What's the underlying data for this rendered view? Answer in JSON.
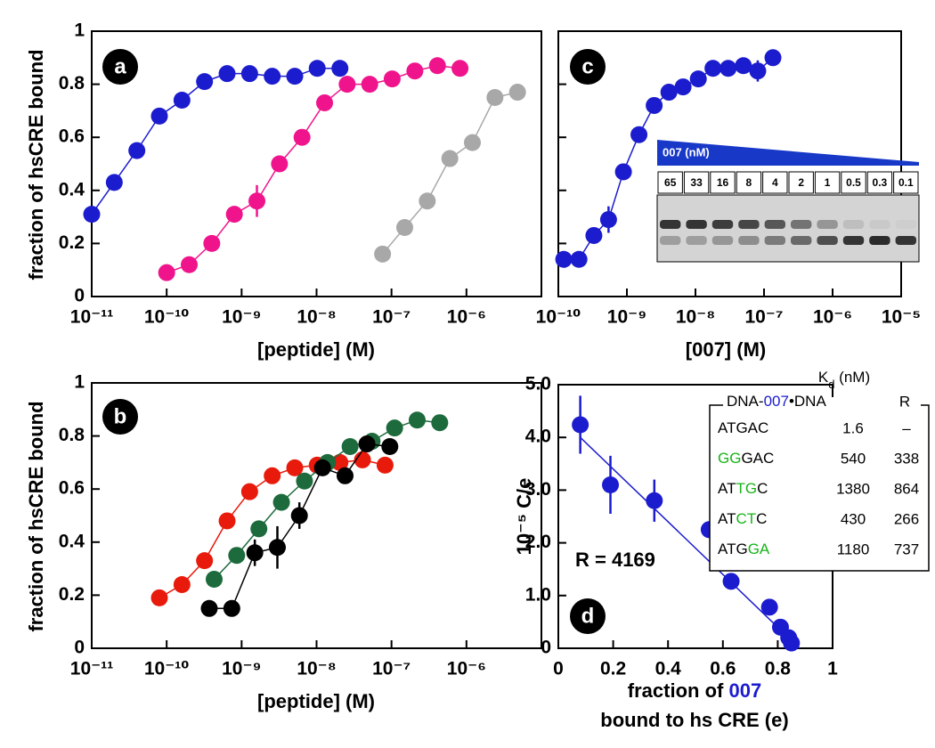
{
  "chart_data": [
    {
      "type": "line",
      "panel": "a",
      "ylabel": "fraction of hsCRE bound",
      "xlabel": "[peptide] (M)",
      "log_x": true,
      "xlim": [
        1e-11,
        1e-05
      ],
      "ylim": [
        0,
        1
      ],
      "xticks": [
        {
          "value": 1e-11,
          "label": "10⁻¹¹"
        },
        {
          "value": 1e-10,
          "label": "10⁻¹⁰"
        },
        {
          "value": 1e-09,
          "label": "10⁻⁹"
        },
        {
          "value": 1e-08,
          "label": "10⁻⁸"
        },
        {
          "value": 1e-07,
          "label": "10⁻⁷"
        },
        {
          "value": 1e-06,
          "label": "10⁻⁶"
        }
      ],
      "yticks": [
        0,
        0.2,
        0.4,
        0.6,
        0.8,
        1
      ],
      "series": [
        {
          "color": "#1c1ccf",
          "x": [
            1e-11,
            2e-11,
            4e-11,
            8e-11,
            1.6e-10,
            3.2e-10,
            6.4e-10,
            1.28e-09,
            2.56e-09,
            5.12e-09,
            1.02e-08,
            2.05e-08
          ],
          "values": [
            0.31,
            0.43,
            0.55,
            0.68,
            0.74,
            0.81,
            0.84,
            0.84,
            0.83,
            0.83,
            0.86,
            0.86
          ]
        },
        {
          "color": "#f0148c",
          "x": [
            1e-10,
            2e-10,
            4e-10,
            8e-10,
            1.6e-09,
            3.2e-09,
            6.4e-09,
            1.28e-08,
            2.56e-08,
            5.12e-08,
            1.02e-07,
            2.05e-07,
            4.1e-07,
            8.2e-07
          ],
          "values": [
            0.09,
            0.12,
            0.2,
            0.31,
            0.36,
            0.5,
            0.6,
            0.73,
            0.8,
            0.8,
            0.82,
            0.85,
            0.87,
            0.86
          ],
          "errors": [
            null,
            null,
            null,
            null,
            0.06,
            null,
            null,
            null,
            null,
            null,
            null,
            null,
            null,
            null
          ]
        },
        {
          "color": "#a8a8a8",
          "x": [
            7.6e-08,
            1.5e-07,
            3e-07,
            6e-07,
            1.2e-06,
            2.4e-06,
            4.8e-06
          ],
          "values": [
            0.16,
            0.26,
            0.36,
            0.52,
            0.58,
            0.75,
            0.77
          ]
        }
      ]
    },
    {
      "type": "line",
      "panel": "c",
      "xlabel": "[007] (M)",
      "log_x": true,
      "show_ytick_labels": false,
      "xlim": [
        1e-10,
        1e-05
      ],
      "ylim": [
        0,
        1
      ],
      "xticks": [
        {
          "value": 1e-10,
          "label": "10⁻¹⁰"
        },
        {
          "value": 1e-09,
          "label": "10⁻⁹"
        },
        {
          "value": 1e-08,
          "label": "10⁻⁸"
        },
        {
          "value": 1e-07,
          "label": "10⁻⁷"
        },
        {
          "value": 1e-06,
          "label": "10⁻⁶"
        },
        {
          "value": 1e-05,
          "label": "10⁻⁵"
        }
      ],
      "yticks": [
        0,
        0.2,
        0.4,
        0.6,
        0.8,
        1
      ],
      "series": [
        {
          "color": "#1c1ccf",
          "x": [
            1.2e-10,
            2e-10,
            3.3e-10,
            5.4e-10,
            8.9e-10,
            1.5e-09,
            2.5e-09,
            4.1e-09,
            6.6e-09,
            1.1e-08,
            1.8e-08,
            3e-08,
            5e-08,
            8.1e-08,
            1.35e-07
          ],
          "values": [
            0.14,
            0.14,
            0.23,
            0.29,
            0.47,
            0.61,
            0.72,
            0.77,
            0.79,
            0.82,
            0.86,
            0.86,
            0.87,
            0.85,
            0.9
          ],
          "errors": [
            null,
            null,
            null,
            0.05,
            null,
            null,
            null,
            null,
            null,
            null,
            null,
            null,
            null,
            0.04,
            null
          ]
        }
      ],
      "inset": {
        "title": "007 (nM)",
        "lanes": [
          "65",
          "33",
          "16",
          "8",
          "4",
          "2",
          "1",
          "0.5",
          "0.3",
          "0.1"
        ]
      }
    },
    {
      "type": "line",
      "panel": "b",
      "ylabel": "fraction of hsCRE bound",
      "xlabel": "[peptide] (M)",
      "log_x": true,
      "xlim": [
        1e-11,
        1e-05
      ],
      "ylim": [
        0,
        1
      ],
      "xticks": [
        {
          "value": 1e-11,
          "label": "10⁻¹¹"
        },
        {
          "value": 1e-10,
          "label": "10⁻¹⁰"
        },
        {
          "value": 1e-09,
          "label": "10⁻⁹"
        },
        {
          "value": 1e-08,
          "label": "10⁻⁸"
        },
        {
          "value": 1e-07,
          "label": "10⁻⁷"
        },
        {
          "value": 1e-06,
          "label": "10⁻⁶"
        }
      ],
      "yticks": [
        0,
        0.2,
        0.4,
        0.6,
        0.8,
        1
      ],
      "series": [
        {
          "color": "#e81a0c",
          "x": [
            8e-11,
            1.6e-10,
            3.2e-10,
            6.4e-10,
            1.28e-09,
            2.56e-09,
            5.12e-09,
            1.02e-08,
            2.05e-08,
            4.1e-08,
            8.2e-08
          ],
          "values": [
            0.19,
            0.24,
            0.33,
            0.48,
            0.59,
            0.65,
            0.68,
            0.69,
            0.7,
            0.71,
            0.69
          ]
        },
        {
          "color": "#1d6a3c",
          "x": [
            4.3e-10,
            8.6e-10,
            1.7e-09,
            3.4e-09,
            6.9e-09,
            1.4e-08,
            2.8e-08,
            5.5e-08,
            1.1e-07,
            2.2e-07,
            4.4e-07
          ],
          "values": [
            0.26,
            0.35,
            0.45,
            0.55,
            0.63,
            0.7,
            0.76,
            0.78,
            0.83,
            0.86,
            0.85
          ]
        },
        {
          "color": "#000000",
          "x": [
            3.7e-10,
            7.4e-10,
            1.5e-09,
            3e-09,
            5.9e-09,
            1.2e-08,
            2.4e-08,
            4.7e-08,
            9.5e-08
          ],
          "values": [
            0.15,
            0.15,
            0.36,
            0.38,
            0.5,
            0.68,
            0.65,
            0.77,
            0.76
          ],
          "errors": [
            null,
            null,
            0.05,
            0.08,
            0.05,
            null,
            null,
            null,
            null
          ]
        }
      ]
    },
    {
      "type": "scatter",
      "panel": "d",
      "ylabel": "10⁻⁵ C/e",
      "xlabel_lines": [
        [
          {
            "text": "fraction of "
          },
          {
            "text": "007",
            "color": "#1c1ccf"
          }
        ],
        [
          {
            "text": "bound to hs CRE (e)"
          }
        ]
      ],
      "xlim": [
        0,
        1
      ],
      "ylim": [
        0,
        5
      ],
      "xticks": [
        0,
        0.2,
        0.4,
        0.6,
        0.8,
        1
      ],
      "yticks": [
        0,
        {
          "value": 1,
          "label": "1.0"
        },
        {
          "value": 2,
          "label": "2.0"
        },
        {
          "value": 3,
          "label": "3.0"
        },
        {
          "value": 4,
          "label": "4.0"
        },
        {
          "value": 5,
          "label": "5.0"
        }
      ],
      "series": [
        {
          "color": "#1c1ccf",
          "x": [
            0.08,
            0.19,
            0.35,
            0.55,
            0.63,
            0.77,
            0.81,
            0.84,
            0.85
          ],
          "values": [
            4.24,
            3.1,
            2.8,
            2.25,
            1.27,
            0.78,
            0.4,
            0.2,
            0.1
          ],
          "errors": [
            0.55,
            0.55,
            0.4,
            null,
            null,
            null,
            null,
            null,
            null
          ]
        }
      ],
      "fit_line": {
        "x": [
          0.08,
          0.88
        ],
        "y": [
          4.0,
          0
        ]
      },
      "annotation": "R = 4169",
      "table": {
        "title": [
          {
            "text": "K"
          },
          {
            "text": "d",
            "sub": true
          },
          {
            "text": " (nM)"
          }
        ],
        "header": [
          {
            "text": "DNA-"
          },
          {
            "text": "007",
            "color": "#1c1ccf"
          },
          {
            "text": "•DNA"
          }
        ],
        "header_r": "R",
        "rows": [
          {
            "seq": [
              {
                "text": "ATGAC"
              }
            ],
            "kd": 1.6,
            "r": "–"
          },
          {
            "seq": [
              {
                "text": "GG",
                "color": "#18b418"
              },
              {
                "text": "GAC"
              }
            ],
            "kd": 540,
            "r": 338
          },
          {
            "seq": [
              {
                "text": "AT"
              },
              {
                "text": "TG",
                "color": "#18b418"
              },
              {
                "text": "C"
              }
            ],
            "kd": 1380,
            "r": 864
          },
          {
            "seq": [
              {
                "text": "AT"
              },
              {
                "text": "CT",
                "color": "#18b418"
              },
              {
                "text": "C"
              }
            ],
            "kd": 430,
            "r": 266
          },
          {
            "seq": [
              {
                "text": "ATG"
              },
              {
                "text": "GA",
                "color": "#18b418"
              }
            ],
            "kd": 1180,
            "r": 737
          }
        ]
      }
    }
  ]
}
